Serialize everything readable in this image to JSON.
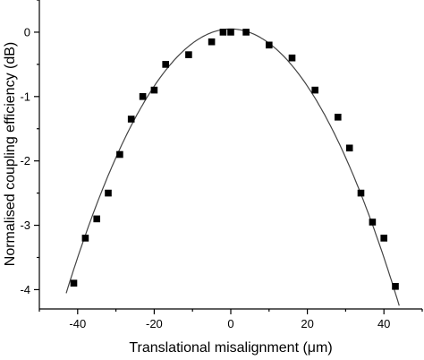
{
  "chart_data": {
    "type": "scatter",
    "title": "",
    "xlabel": "Translational misalignment (μm)",
    "ylabel": "Normalised coupling efficiency (dB)",
    "xlim": [
      -50,
      50
    ],
    "ylim": [
      -4.3,
      0.5
    ],
    "x_ticks": [
      -40,
      -20,
      0,
      20,
      40
    ],
    "x_tick_labels": [
      "-40",
      "-20",
      "0",
      "20",
      "40"
    ],
    "y_ticks": [
      0,
      -1,
      -2,
      -3,
      -4
    ],
    "y_tick_labels": [
      "0",
      "-1",
      "-2",
      "-3",
      "-4"
    ],
    "grid": false,
    "series": [
      {
        "kind": "scatter",
        "marker": "square",
        "color": "#000000",
        "points": [
          [
            -41,
            -3.9
          ],
          [
            -38,
            -3.2
          ],
          [
            -35,
            -2.9
          ],
          [
            -32,
            -2.5
          ],
          [
            -29,
            -1.9
          ],
          [
            -26,
            -1.35
          ],
          [
            -23,
            -1.0
          ],
          [
            -20,
            -0.9
          ],
          [
            -17,
            -0.5
          ],
          [
            -11,
            -0.35
          ],
          [
            -5,
            -0.15
          ],
          [
            -2,
            0.0
          ],
          [
            0,
            0.0
          ],
          [
            4,
            0.0
          ],
          [
            10,
            -0.2
          ],
          [
            16,
            -0.4
          ],
          [
            22,
            -0.9
          ],
          [
            28,
            -1.32
          ],
          [
            31,
            -1.8
          ],
          [
            34,
            -2.5
          ],
          [
            37,
            -2.95
          ],
          [
            40,
            -3.2
          ],
          [
            43,
            -3.95
          ]
        ]
      },
      {
        "kind": "fit-line",
        "color": "#444444",
        "model": "parabola",
        "peak_x": 0,
        "peak_y": 0.05,
        "curvature": -0.00222
      }
    ]
  }
}
